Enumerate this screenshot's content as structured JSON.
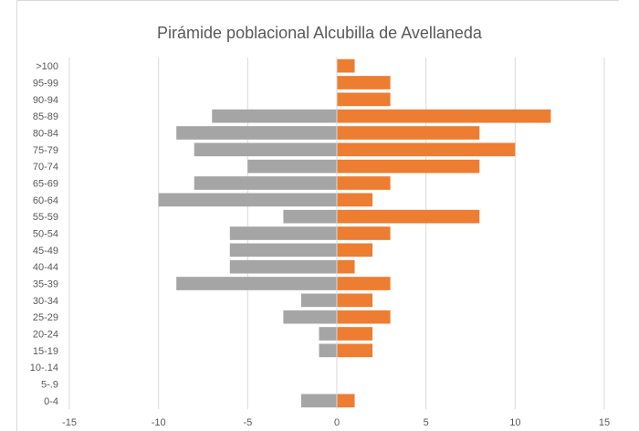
{
  "chart_data": {
    "type": "bar",
    "orientation": "horizontal",
    "title": "Pirámide poblacional Alcubilla de Avellaneda",
    "categories": [
      "0-4",
      "5-.9",
      "10-.14",
      "15-19",
      "20-24",
      "25-29",
      "30-34",
      "35-39",
      "40-44",
      "45-49",
      "50-54",
      "55-59",
      "60-64",
      "65-69",
      "70-74",
      "75-79",
      "80-84",
      "85-89",
      "90-94",
      "95-99",
      ">100"
    ],
    "series": [
      {
        "color": "#a5a5a5",
        "values": [
          -2,
          0,
          0,
          -1,
          -1,
          -3,
          -2,
          -9,
          -6,
          -6,
          -6,
          -3,
          -10,
          -8,
          -5,
          -8,
          -9,
          -7,
          0,
          0,
          0
        ]
      },
      {
        "color": "#ed7d31",
        "values": [
          1,
          0,
          0,
          2,
          2,
          3,
          2,
          3,
          1,
          2,
          3,
          8,
          2,
          3,
          8,
          10,
          8,
          12,
          3,
          3,
          1
        ]
      }
    ],
    "xlim": [
      -15,
      15
    ],
    "xticks": [
      "-15",
      "-10",
      "-5",
      "0",
      "5",
      "10",
      "15"
    ],
    "grid": true,
    "legend": "none"
  }
}
